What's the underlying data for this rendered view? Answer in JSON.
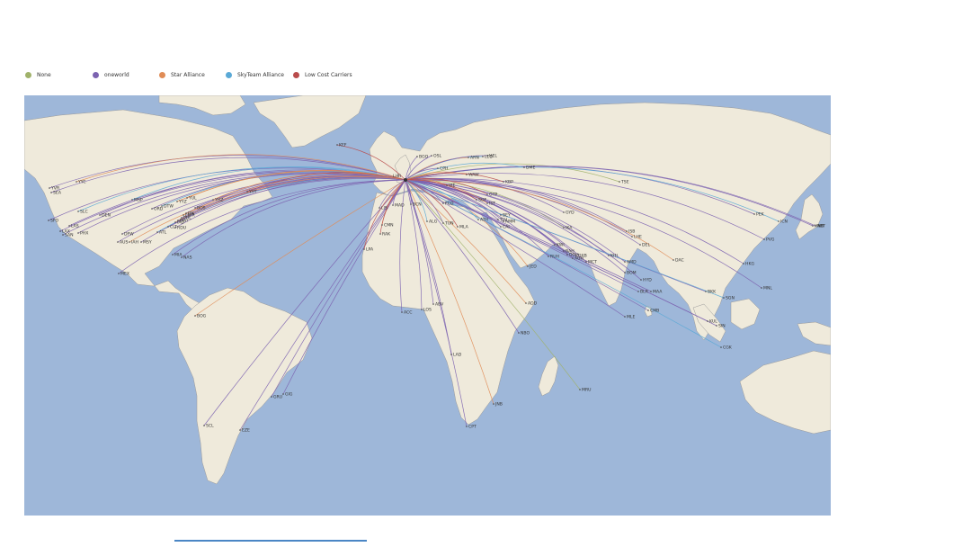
{
  "legend": [
    {
      "label": "None",
      "color": "#a0b26a"
    },
    {
      "label": "oneworld",
      "color": "#7c63b0"
    },
    {
      "label": "Star Alliance",
      "color": "#e08c56"
    },
    {
      "label": "SkyTeam Alliance",
      "color": "#5aa9d6"
    },
    {
      "label": "Low Cost Carriers",
      "color": "#b94c4c"
    }
  ],
  "hub": {
    "code": "LHR"
  },
  "colors": {
    "ocean": "#9eb7d9",
    "land": "#efeadb",
    "border": "#9a9a9a"
  },
  "airports": [
    {
      "code": "KEF",
      "alliance": "Low Cost Carriers"
    },
    {
      "code": "YVR",
      "alliance": "oneworld"
    },
    {
      "code": "SEA",
      "alliance": "oneworld"
    },
    {
      "code": "YYC",
      "alliance": "Star Alliance"
    },
    {
      "code": "SFO",
      "alliance": "oneworld"
    },
    {
      "code": "LAS",
      "alliance": "oneworld"
    },
    {
      "code": "LAX",
      "alliance": "oneworld"
    },
    {
      "code": "SAN",
      "alliance": "oneworld"
    },
    {
      "code": "PHX",
      "alliance": "oneworld"
    },
    {
      "code": "SLC",
      "alliance": "SkyTeam Alliance"
    },
    {
      "code": "DEN",
      "alliance": "oneworld"
    },
    {
      "code": "DFW",
      "alliance": "oneworld"
    },
    {
      "code": "AUS",
      "alliance": "oneworld"
    },
    {
      "code": "IAH",
      "alliance": "Star Alliance"
    },
    {
      "code": "MSY",
      "alliance": "oneworld"
    },
    {
      "code": "MSP",
      "alliance": "SkyTeam Alliance"
    },
    {
      "code": "ORD",
      "alliance": "oneworld"
    },
    {
      "code": "DTW",
      "alliance": "SkyTeam Alliance"
    },
    {
      "code": "ATL",
      "alliance": "SkyTeam Alliance"
    },
    {
      "code": "CLT",
      "alliance": "oneworld"
    },
    {
      "code": "BOS",
      "alliance": "oneworld"
    },
    {
      "code": "JFK",
      "alliance": "oneworld"
    },
    {
      "code": "EWR",
      "alliance": "Star Alliance"
    },
    {
      "code": "PHL",
      "alliance": "oneworld"
    },
    {
      "code": "BWI",
      "alliance": "oneworld"
    },
    {
      "code": "IAD",
      "alliance": "Star Alliance"
    },
    {
      "code": "RDU",
      "alliance": "oneworld"
    },
    {
      "code": "YUL",
      "alliance": "Star Alliance"
    },
    {
      "code": "YYZ",
      "alliance": "Star Alliance"
    },
    {
      "code": "YHZ",
      "alliance": "Star Alliance"
    },
    {
      "code": "YYT",
      "alliance": "Low Cost Carriers"
    },
    {
      "code": "MIA",
      "alliance": "oneworld"
    },
    {
      "code": "NAS",
      "alliance": "oneworld"
    },
    {
      "code": "MEX",
      "alliance": "oneworld"
    },
    {
      "code": "BOG",
      "alliance": "Star Alliance"
    },
    {
      "code": "GRU",
      "alliance": "oneworld"
    },
    {
      "code": "GIG",
      "alliance": "oneworld"
    },
    {
      "code": "EZE",
      "alliance": "oneworld"
    },
    {
      "code": "SCL",
      "alliance": "oneworld"
    },
    {
      "code": "LPA",
      "alliance": "Low Cost Carriers"
    },
    {
      "code": "ACC",
      "alliance": "oneworld"
    },
    {
      "code": "ABV",
      "alliance": "oneworld"
    },
    {
      "code": "LOS",
      "alliance": "oneworld"
    },
    {
      "code": "LAD",
      "alliance": "oneworld"
    },
    {
      "code": "JNB",
      "alliance": "Star Alliance"
    },
    {
      "code": "CPT",
      "alliance": "oneworld"
    },
    {
      "code": "NBO",
      "alliance": "oneworld"
    },
    {
      "code": "ADD",
      "alliance": "Star Alliance"
    },
    {
      "code": "MRU",
      "alliance": "None"
    },
    {
      "code": "CAI",
      "alliance": "oneworld"
    },
    {
      "code": "JED",
      "alliance": "Star Alliance"
    },
    {
      "code": "RUH",
      "alliance": "oneworld"
    },
    {
      "code": "KWI",
      "alliance": "oneworld"
    },
    {
      "code": "DOH",
      "alliance": "oneworld"
    },
    {
      "code": "BAH",
      "alliance": "oneworld"
    },
    {
      "code": "DXB",
      "alliance": "oneworld"
    },
    {
      "code": "AUH",
      "alliance": "oneworld"
    },
    {
      "code": "MCT",
      "alliance": "oneworld"
    },
    {
      "code": "IKA",
      "alliance": "None"
    },
    {
      "code": "TLV",
      "alliance": "oneworld"
    },
    {
      "code": "AMM",
      "alliance": "oneworld"
    },
    {
      "code": "BEY",
      "alliance": "oneworld"
    },
    {
      "code": "GYD",
      "alliance": "oneworld"
    },
    {
      "code": "TSE",
      "alliance": "None"
    },
    {
      "code": "KHI",
      "alliance": "oneworld"
    },
    {
      "code": "ISB",
      "alliance": "oneworld"
    },
    {
      "code": "LHE",
      "alliance": "oneworld"
    },
    {
      "code": "DEL",
      "alliance": "oneworld"
    },
    {
      "code": "AMD",
      "alliance": "oneworld"
    },
    {
      "code": "BOM",
      "alliance": "oneworld"
    },
    {
      "code": "HYD",
      "alliance": "oneworld"
    },
    {
      "code": "BLR",
      "alliance": "oneworld"
    },
    {
      "code": "MAA",
      "alliance": "oneworld"
    },
    {
      "code": "CMB",
      "alliance": "oneworld"
    },
    {
      "code": "MLE",
      "alliance": "oneworld"
    },
    {
      "code": "DAC",
      "alliance": "Star Alliance"
    },
    {
      "code": "BKK",
      "alliance": "oneworld"
    },
    {
      "code": "SGN",
      "alliance": "SkyTeam Alliance"
    },
    {
      "code": "KUL",
      "alliance": "oneworld"
    },
    {
      "code": "SIN",
      "alliance": "oneworld"
    },
    {
      "code": "CGK",
      "alliance": "SkyTeam Alliance"
    },
    {
      "code": "HKG",
      "alliance": "oneworld"
    },
    {
      "code": "MNL",
      "alliance": "oneworld"
    },
    {
      "code": "PVG",
      "alliance": "oneworld"
    },
    {
      "code": "PEK",
      "alliance": "oneworld"
    },
    {
      "code": "ICN",
      "alliance": "SkyTeam Alliance"
    },
    {
      "code": "HND",
      "alliance": "oneworld"
    },
    {
      "code": "NRT",
      "alliance": "oneworld"
    },
    {
      "code": "LED",
      "alliance": "SkyTeam Alliance"
    },
    {
      "code": "DME",
      "alliance": "SkyTeam Alliance"
    },
    {
      "code": "KBP",
      "alliance": "Low Cost Carriers"
    },
    {
      "code": "IST",
      "alliance": "Star Alliance"
    },
    {
      "code": "ATH",
      "alliance": "SkyTeam Alliance"
    },
    {
      "code": "TUN",
      "alliance": "oneworld"
    },
    {
      "code": "ALG",
      "alliance": "SkyTeam Alliance"
    },
    {
      "code": "CMN",
      "alliance": "Star Alliance"
    },
    {
      "code": "RAK",
      "alliance": "Low Cost Carriers"
    },
    {
      "code": "MLA",
      "alliance": "Low Cost Carriers"
    },
    {
      "code": "LIS",
      "alliance": "oneworld"
    },
    {
      "code": "MAD",
      "alliance": "oneworld"
    },
    {
      "code": "BCN",
      "alliance": "oneworld"
    },
    {
      "code": "FCO",
      "alliance": "oneworld"
    },
    {
      "code": "OSL",
      "alliance": "oneworld"
    },
    {
      "code": "ARN",
      "alliance": "Star Alliance"
    },
    {
      "code": "HEL",
      "alliance": "oneworld"
    },
    {
      "code": "CPH",
      "alliance": "oneworld"
    },
    {
      "code": "WAW",
      "alliance": "Star Alliance"
    },
    {
      "code": "VIE",
      "alliance": "Star Alliance"
    },
    {
      "code": "BGO",
      "alliance": "oneworld"
    },
    {
      "code": "OTP",
      "alliance": "Low Cost Carriers"
    },
    {
      "code": "SOF",
      "alliance": "Low Cost Carriers"
    }
  ]
}
